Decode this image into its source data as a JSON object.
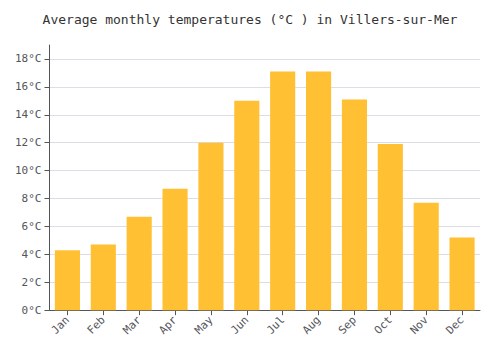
{
  "chart_data": {
    "type": "bar",
    "title": "Average monthly temperatures (°C ) in Villers-sur-Mer",
    "categories": [
      "Jan",
      "Feb",
      "Mar",
      "Apr",
      "May",
      "Jun",
      "Jul",
      "Aug",
      "Sep",
      "Oct",
      "Nov",
      "Dec"
    ],
    "values": [
      4.3,
      4.7,
      6.7,
      8.7,
      12.0,
      15.0,
      17.1,
      17.1,
      15.1,
      11.9,
      7.7,
      5.2
    ],
    "color": "#FFC033",
    "ylim": [
      0,
      19
    ],
    "yticks": [
      {
        "value": 0,
        "label": "0°C"
      },
      {
        "value": 2,
        "label": "2°C"
      },
      {
        "value": 4,
        "label": "4°C"
      },
      {
        "value": 6,
        "label": "6°C"
      },
      {
        "value": 8,
        "label": "8°C"
      },
      {
        "value": 10,
        "label": "10°C"
      },
      {
        "value": 12,
        "label": "12°C"
      },
      {
        "value": 14,
        "label": "14°C"
      },
      {
        "value": 16,
        "label": "16°C"
      },
      {
        "value": 18,
        "label": "18°C"
      }
    ],
    "grid": true
  }
}
